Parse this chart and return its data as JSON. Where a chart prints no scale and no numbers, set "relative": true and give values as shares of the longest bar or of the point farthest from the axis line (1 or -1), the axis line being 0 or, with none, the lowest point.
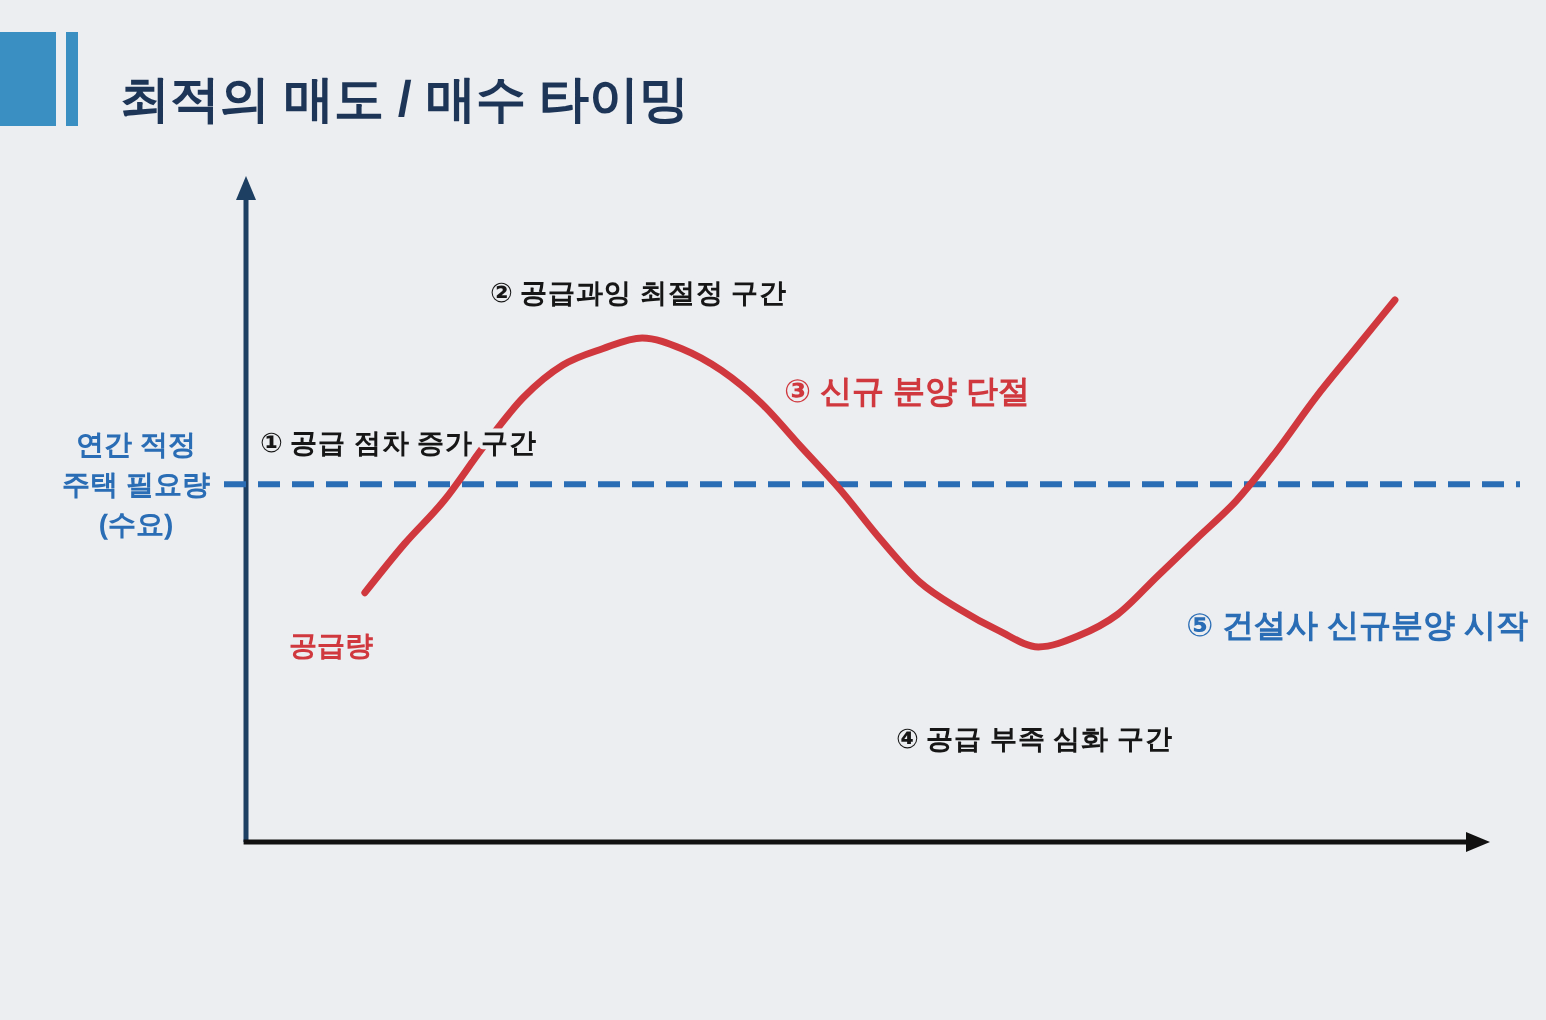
{
  "chart_data": {
    "type": "line",
    "title": "최적의 매도 / 매수 타이밍",
    "relative": true,
    "categories": [
      null,
      null,
      null,
      null,
      null,
      null,
      null,
      null,
      null,
      null,
      null,
      null,
      null,
      null,
      null,
      null,
      null,
      null,
      null,
      null,
      null,
      null,
      null,
      null,
      null,
      null,
      null
    ],
    "series": [
      {
        "name": "공급량",
        "color": "#d0383e",
        "values": [
          0.46,
          0.55,
          0.63,
          0.73,
          0.82,
          0.88,
          0.91,
          0.93,
          0.91,
          0.87,
          0.81,
          0.73,
          0.65,
          0.56,
          0.48,
          0.43,
          0.39,
          0.36,
          0.38,
          0.42,
          0.49,
          0.56,
          0.63,
          0.72,
          0.82,
          0.91,
          1
        ]
      }
    ],
    "ref_lines": [
      {
        "axis": "y",
        "value": 0.66,
        "label": "연간 적정 주택 필요량 (수요)",
        "color": "#2a6db5",
        "line_style": "dashed"
      }
    ],
    "annotations": [
      "① 공급 점차 증가 구간",
      "② 공급과잉 최절정 구간",
      "③ 신규 분양 단절",
      "④ 공급 부족 심화 구간",
      "⑤ 건설사 신규분양 시작"
    ]
  }
}
